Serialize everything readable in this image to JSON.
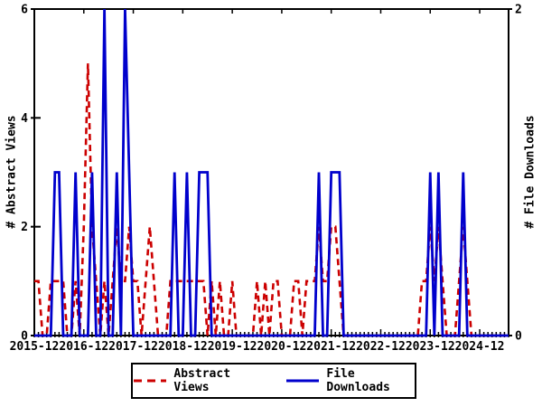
{
  "colors": {
    "abstract_views": "#cc0000",
    "file_downloads": "#0000cc",
    "axis": "#000000",
    "background": "#ffffff"
  },
  "axes": {
    "left": {
      "label": "# Abstract Views",
      "ticks": [
        0,
        2,
        4,
        6
      ],
      "range": [
        0,
        6
      ]
    },
    "right": {
      "label": "# File Downloads",
      "ticks": [
        0,
        2
      ],
      "range": [
        0,
        2
      ]
    },
    "x": {
      "tick_labels": [
        "2015-12",
        "2016-12",
        "2017-12",
        "2018-12",
        "2019-12",
        "2020-12",
        "2021-12",
        "2022-12",
        "2023-12",
        "2024-12"
      ]
    }
  },
  "legend": {
    "items": [
      {
        "label": "Abstract Views",
        "style": "dashed",
        "color": "#cc0000"
      },
      {
        "label": "File Downloads",
        "style": "solid",
        "color": "#0000cc"
      }
    ]
  },
  "chart_data": {
    "type": "line",
    "title": "",
    "xlabel": "",
    "ylabel_left": "# Abstract Views",
    "ylabel_right": "# File Downloads",
    "ylim_left": [
      0,
      6
    ],
    "ylim_right": [
      0,
      2
    ],
    "grid": false,
    "legend_position": "bottom-center",
    "x": [
      "2015-12",
      "2016-01",
      "2016-02",
      "2016-03",
      "2016-04",
      "2016-05",
      "2016-06",
      "2016-07",
      "2016-08",
      "2016-09",
      "2016-10",
      "2016-11",
      "2016-12",
      "2017-01",
      "2017-02",
      "2017-03",
      "2017-04",
      "2017-05",
      "2017-06",
      "2017-07",
      "2017-08",
      "2017-09",
      "2017-10",
      "2017-11",
      "2017-12",
      "2018-01",
      "2018-02",
      "2018-03",
      "2018-04",
      "2018-05",
      "2018-06",
      "2018-07",
      "2018-08",
      "2018-09",
      "2018-10",
      "2018-11",
      "2018-12",
      "2019-01",
      "2019-02",
      "2019-03",
      "2019-04",
      "2019-05",
      "2019-06",
      "2019-07",
      "2019-08",
      "2019-09",
      "2019-10",
      "2019-11",
      "2019-12",
      "2020-01",
      "2020-02",
      "2020-03",
      "2020-04",
      "2020-05",
      "2020-06",
      "2020-07",
      "2020-08",
      "2020-09",
      "2020-10",
      "2020-11",
      "2020-12",
      "2021-01",
      "2021-02",
      "2021-03",
      "2021-04",
      "2021-05",
      "2021-06",
      "2021-07",
      "2021-08",
      "2021-09",
      "2021-10",
      "2021-11",
      "2021-12",
      "2022-01",
      "2022-02",
      "2022-03",
      "2022-04",
      "2022-05",
      "2022-06",
      "2022-07",
      "2022-08",
      "2022-09",
      "2022-10",
      "2022-11",
      "2022-12",
      "2023-01",
      "2023-02",
      "2023-03",
      "2023-04",
      "2023-05",
      "2023-06",
      "2023-07",
      "2023-08",
      "2023-09",
      "2023-10",
      "2023-11",
      "2023-12",
      "2024-01",
      "2024-02",
      "2024-03",
      "2024-04",
      "2024-05",
      "2024-06",
      "2024-07",
      "2024-08",
      "2024-09",
      "2024-10",
      "2024-11",
      "2024-12",
      "2025-01",
      "2025-02",
      "2025-03",
      "2025-04",
      "2025-05",
      "2025-06",
      "2025-07"
    ],
    "series": [
      {
        "name": "Abstract Views",
        "axis": "left",
        "values": [
          1,
          1,
          0,
          0,
          1,
          1,
          1,
          1,
          0,
          0,
          1,
          0,
          2,
          5,
          2,
          1,
          0,
          1,
          0,
          1,
          2,
          1,
          1,
          2,
          1,
          1,
          0,
          1,
          2,
          1,
          0,
          0,
          0,
          1,
          1,
          1,
          1,
          1,
          1,
          1,
          1,
          1,
          0,
          1,
          0,
          1,
          0,
          0,
          1,
          0,
          0,
          0,
          0,
          0,
          1,
          0,
          1,
          0,
          1,
          1,
          0,
          0,
          0,
          1,
          1,
          0,
          1,
          1,
          1,
          2,
          1,
          1,
          2,
          2,
          1,
          0,
          0,
          0,
          0,
          0,
          0,
          0,
          0,
          0,
          0,
          0,
          0,
          0,
          0,
          0,
          0,
          0,
          0,
          0,
          1,
          1,
          2,
          1,
          2,
          1,
          0,
          0,
          0,
          1,
          2,
          1,
          0,
          0,
          0,
          0,
          0,
          0,
          0,
          0,
          0,
          0
        ]
      },
      {
        "name": "File Downloads",
        "axis": "right",
        "values": [
          0,
          0,
          0,
          0,
          0,
          1,
          1,
          0,
          0,
          0,
          1,
          0,
          0,
          0,
          1,
          0,
          0,
          2,
          0,
          0,
          1,
          0,
          2,
          1,
          0,
          0,
          0,
          0,
          0,
          0,
          0,
          0,
          0,
          0,
          1,
          0,
          0,
          1,
          0,
          0,
          1,
          1,
          1,
          0,
          0,
          0,
          0,
          0,
          0,
          0,
          0,
          0,
          0,
          0,
          0,
          0,
          0,
          0,
          0,
          0,
          0,
          0,
          0,
          0,
          0,
          0,
          0,
          0,
          0,
          1,
          0,
          0,
          1,
          1,
          1,
          0,
          0,
          0,
          0,
          0,
          0,
          0,
          0,
          0,
          0,
          0,
          0,
          0,
          0,
          0,
          0,
          0,
          0,
          0,
          0,
          0,
          1,
          0,
          1,
          0,
          0,
          0,
          0,
          0,
          1,
          0,
          0,
          0,
          0,
          0,
          0,
          0,
          0,
          0,
          0,
          0
        ]
      }
    ]
  }
}
